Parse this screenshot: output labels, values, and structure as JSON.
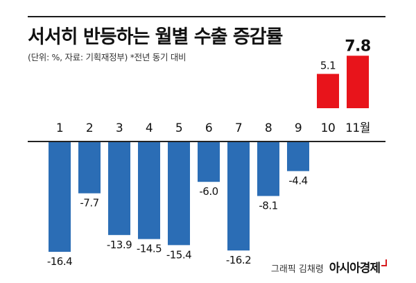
{
  "header": {
    "title": "서서히 반등하는 월별 수출 증감률",
    "subtitle": "(단위: %, 자료: 기획재정부) *전년 동기 대비"
  },
  "credit": {
    "text": "그래픽 김채령",
    "logo": "아시아경제"
  },
  "colors": {
    "negative": "#2b6db5",
    "positive": "#e8141b",
    "baseline": "#222222",
    "label": "#111111"
  },
  "chart_data": {
    "type": "bar",
    "title": "서서히 반등하는 월별 수출 증감률",
    "categories": [
      "1",
      "2",
      "3",
      "4",
      "5",
      "6",
      "7",
      "8",
      "9",
      "10",
      "11월"
    ],
    "values": [
      -16.4,
      -7.7,
      -13.9,
      -14.5,
      -15.4,
      -6.0,
      -16.2,
      -8.1,
      -4.4,
      5.1,
      7.8
    ],
    "data_labels": [
      "-16.4",
      "-7.7",
      "-13.9",
      "-14.5",
      "-15.4",
      "-6.0",
      "-16.2",
      "-8.1",
      "-4.4",
      "5.1",
      "7.8"
    ],
    "ylim": [
      -16.4,
      7.8
    ],
    "xlabel": "",
    "ylabel": "",
    "grid": false,
    "legend": "none"
  }
}
